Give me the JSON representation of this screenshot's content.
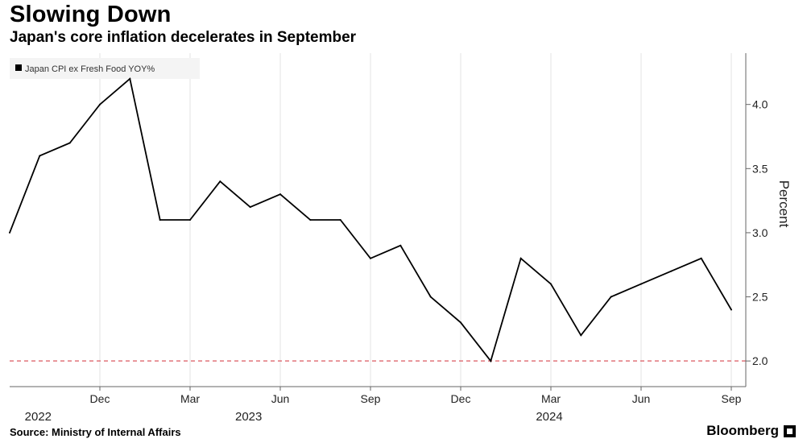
{
  "header": {
    "title": "Slowing Down",
    "subtitle": "Japan's core inflation decelerates in September"
  },
  "footer": {
    "source": "Source: Ministry of Internal Affairs",
    "brand": "Bloomberg"
  },
  "chart_data": {
    "type": "line",
    "title": "Slowing Down",
    "subtitle": "Japan's core inflation decelerates in September",
    "ylabel": "Percent",
    "ylim": [
      1.8,
      4.4
    ],
    "y_ticks": [
      2.0,
      2.5,
      3.0,
      3.5,
      4.0
    ],
    "y_tick_labels": [
      "2.0",
      "2.5",
      "3.0",
      "3.5",
      "4.0"
    ],
    "x_range": [
      "2022-09",
      "2024-09"
    ],
    "x_ticks": [
      {
        "x": "2022-12",
        "label": "Dec"
      },
      {
        "x": "2023-03",
        "label": "Mar"
      },
      {
        "x": "2023-06",
        "label": "Jun"
      },
      {
        "x": "2023-09",
        "label": "Sep"
      },
      {
        "x": "2023-12",
        "label": "Dec"
      },
      {
        "x": "2024-03",
        "label": "Mar"
      },
      {
        "x": "2024-06",
        "label": "Jun"
      },
      {
        "x": "2024-09",
        "label": "Sep"
      }
    ],
    "year_labels": [
      {
        "x": "2022-11",
        "label": "2022"
      },
      {
        "x": "2023-06",
        "label": "2023"
      },
      {
        "x": "2024-04",
        "label": "2024"
      }
    ],
    "grid": "vertical",
    "legend": {
      "position": "top-left"
    },
    "reference_line": {
      "y": 2.0,
      "color": "#e0737a",
      "style": "dashed"
    },
    "series": [
      {
        "name": "Japan CPI ex Fresh Food YOY%",
        "color": "#000000",
        "points": [
          {
            "x": "2022-09",
            "y": 3.0
          },
          {
            "x": "2022-10",
            "y": 3.6
          },
          {
            "x": "2022-11",
            "y": 3.7
          },
          {
            "x": "2022-12",
            "y": 4.0
          },
          {
            "x": "2023-01",
            "y": 4.2
          },
          {
            "x": "2023-02",
            "y": 3.1
          },
          {
            "x": "2023-03",
            "y": 3.1
          },
          {
            "x": "2023-04",
            "y": 3.4
          },
          {
            "x": "2023-05",
            "y": 3.2
          },
          {
            "x": "2023-06",
            "y": 3.3
          },
          {
            "x": "2023-07",
            "y": 3.1
          },
          {
            "x": "2023-08",
            "y": 3.1
          },
          {
            "x": "2023-09",
            "y": 2.8
          },
          {
            "x": "2023-10",
            "y": 2.9
          },
          {
            "x": "2023-11",
            "y": 2.5
          },
          {
            "x": "2023-12",
            "y": 2.3
          },
          {
            "x": "2024-01",
            "y": 2.0
          },
          {
            "x": "2024-02",
            "y": 2.8
          },
          {
            "x": "2024-03",
            "y": 2.6
          },
          {
            "x": "2024-04",
            "y": 2.2
          },
          {
            "x": "2024-05",
            "y": 2.5
          },
          {
            "x": "2024-06",
            "y": 2.6
          },
          {
            "x": "2024-07",
            "y": 2.7
          },
          {
            "x": "2024-08",
            "y": 2.8
          },
          {
            "x": "2024-09",
            "y": 2.4
          }
        ]
      }
    ]
  }
}
